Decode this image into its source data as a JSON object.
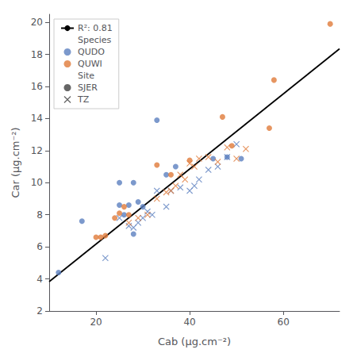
{
  "chart_data": {
    "type": "scatter",
    "xlabel": "Cab (μg.cm⁻²)",
    "ylabel": "Car (μg.cm⁻²)",
    "xlim": [
      10,
      72
    ],
    "ylim": [
      2,
      20.5
    ],
    "xticks": [
      20,
      40,
      60
    ],
    "yticks": [
      2,
      4,
      6,
      8,
      10,
      12,
      14,
      16,
      18,
      20
    ],
    "grid": false,
    "legend": "upper left",
    "series": [
      {
        "name": "R²: 0.81",
        "type": "line",
        "color": "#000000",
        "x": [
          10,
          72
        ],
        "values": [
          3.83,
          18.35
        ]
      },
      {
        "type": "scatter",
        "species": "QUDO",
        "site": "SJER",
        "marker": "circle",
        "color": "#5b7fbf",
        "x": [
          12,
          17,
          25,
          25,
          26,
          27,
          28,
          28,
          29,
          30,
          33,
          35,
          37,
          45,
          48,
          51
        ],
        "values": [
          4.4,
          7.6,
          8.6,
          10.0,
          8.0,
          8.6,
          6.8,
          10.0,
          8.8,
          8.5,
          13.9,
          10.5,
          11.0,
          11.5,
          11.6,
          11.5
        ]
      },
      {
        "type": "scatter",
        "species": "QUDO",
        "site": "TZ",
        "marker": "x",
        "color": "#5b7fbf",
        "x": [
          22,
          25,
          27,
          28,
          29,
          30,
          31,
          32,
          33,
          35,
          36,
          38,
          40,
          41,
          42,
          44,
          46,
          48,
          50
        ],
        "values": [
          5.3,
          7.8,
          7.3,
          7.2,
          7.5,
          7.8,
          8.2,
          8.0,
          9.5,
          8.5,
          9.5,
          9.7,
          9.5,
          9.8,
          10.2,
          10.8,
          11.0,
          11.6,
          12.4
        ]
      },
      {
        "type": "scatter",
        "species": "QUWI",
        "site": "SJER",
        "marker": "circle",
        "color": "#e07b3a",
        "x": [
          20,
          21,
          22,
          24,
          25,
          26,
          27,
          33,
          36,
          40,
          47,
          49,
          57,
          58,
          70
        ],
        "values": [
          6.6,
          6.6,
          6.7,
          7.8,
          8.1,
          8.5,
          8.0,
          11.1,
          10.5,
          11.4,
          14.1,
          12.3,
          13.4,
          16.4,
          19.9
        ]
      },
      {
        "type": "scatter",
        "species": "QUWI",
        "site": "TZ",
        "marker": "x",
        "color": "#e07b3a",
        "x": [
          27,
          29,
          31,
          33,
          35,
          36,
          37,
          38,
          39,
          40,
          41,
          42,
          44,
          46,
          48,
          50,
          52
        ],
        "values": [
          7.5,
          7.8,
          8.0,
          9.0,
          9.4,
          9.5,
          9.8,
          10.5,
          10.2,
          11.2,
          11.0,
          11.5,
          11.6,
          11.3,
          12.2,
          11.5,
          12.1
        ]
      }
    ],
    "legend_groups": [
      {
        "title": "Species",
        "items": [
          {
            "name": "QUDO",
            "color": "#5b7fbf",
            "marker": "circle"
          },
          {
            "name": "QUWI",
            "color": "#e07b3a",
            "marker": "circle"
          }
        ]
      },
      {
        "title": "Site",
        "items": [
          {
            "name": "SJER",
            "color": "#404040",
            "marker": "circle"
          },
          {
            "name": "TZ",
            "color": "#404040",
            "marker": "x"
          }
        ]
      }
    ]
  }
}
